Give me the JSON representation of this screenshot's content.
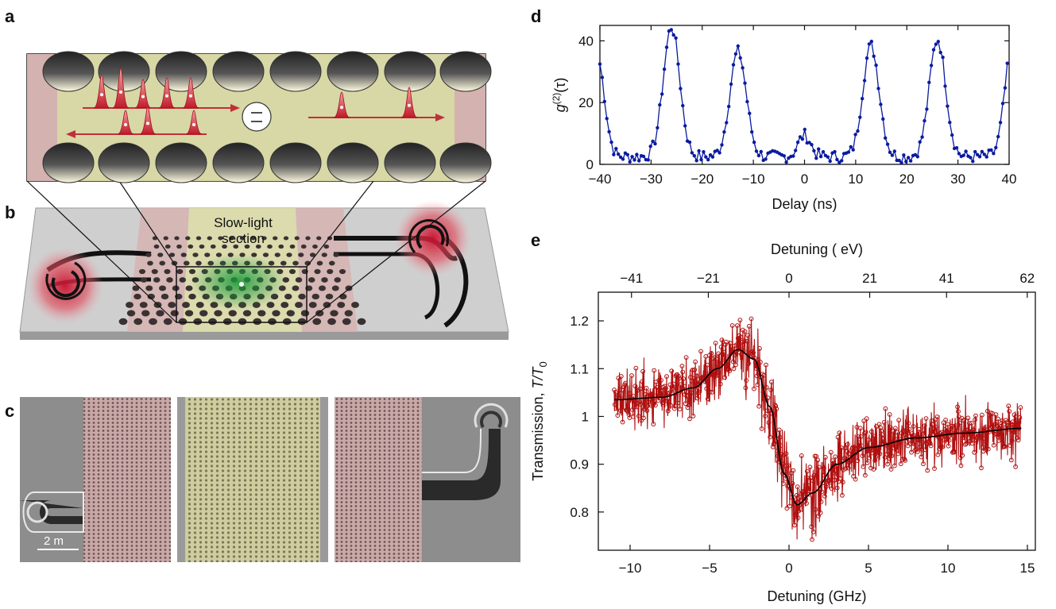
{
  "panels": {
    "a": "a",
    "b": "b",
    "c": "c",
    "d": "d",
    "e": "e"
  },
  "illustration": {
    "slow_light_line1": "Slow-light",
    "slow_light_line2": "section",
    "scale_bar": "2  m",
    "emitter_symbol": "⚌"
  },
  "colors": {
    "blue_series": "#0a1aa0",
    "red_series": "#b01010",
    "fit_line": "#000000",
    "membrane_yellow": "#d8d7a6",
    "membrane_pink": "#d6b3b1",
    "substrate_gray": "#c9c9c9"
  },
  "chart_data": [
    {
      "id": "d",
      "type": "line",
      "xlabel": "Delay (ns)",
      "ylabel": "g(2)(τ)",
      "xlim": [
        -40,
        40
      ],
      "ylim": [
        0,
        45
      ],
      "xticks": [
        -40,
        -30,
        -20,
        -10,
        0,
        10,
        20,
        30,
        40
      ],
      "yticks": [
        0,
        20,
        40
      ],
      "peaks": [
        {
          "center": -26,
          "height": 42
        },
        {
          "center": -13,
          "height": 34
        },
        {
          "center": 0,
          "height": 7
        },
        {
          "center": 13,
          "height": 36
        },
        {
          "center": 26,
          "height": 38
        }
      ],
      "series": [
        {
          "x_range": [
            -40,
            40
          ],
          "baseline": 2
        }
      ]
    },
    {
      "id": "e",
      "type": "scatter",
      "xlabel": "Detuning (GHz)",
      "top_xlabel": "Detuning (  eV)",
      "ylabel": "Transmission, T/T0",
      "xlim": [
        -12,
        15.5
      ],
      "ylim": [
        0.72,
        1.26
      ],
      "xticks": [
        -10,
        -5,
        0,
        5,
        10,
        15
      ],
      "xtick_labels": [
        "−10",
        "−5",
        "0",
        "5",
        "10",
        "15"
      ],
      "top_ticks": [
        -41,
        -21,
        0,
        21,
        41,
        62
      ],
      "top_tick_labels": [
        "−41",
        "−21",
        "0",
        "21",
        "41",
        "62"
      ],
      "yticks": [
        0.8,
        0.9,
        1.0,
        1.1,
        1.2
      ],
      "ytick_labels": [
        "0.8",
        "0.9",
        "1",
        "1.1",
        "1.2"
      ],
      "fit": {
        "name": "fit",
        "x_range": [
          -11,
          14.6
        ],
        "points": [
          [
            -11,
            1.035
          ],
          [
            -8,
            1.04
          ],
          [
            -6,
            1.06
          ],
          [
            -4.5,
            1.1
          ],
          [
            -3.2,
            1.14
          ],
          [
            -2.2,
            1.12
          ],
          [
            -1.2,
            1.02
          ],
          [
            -0.3,
            0.88
          ],
          [
            0.5,
            0.815
          ],
          [
            1.5,
            0.84
          ],
          [
            3,
            0.9
          ],
          [
            5,
            0.935
          ],
          [
            8,
            0.955
          ],
          [
            11,
            0.965
          ],
          [
            14.6,
            0.975
          ]
        ]
      },
      "noise_amplitude": 0.045
    }
  ]
}
